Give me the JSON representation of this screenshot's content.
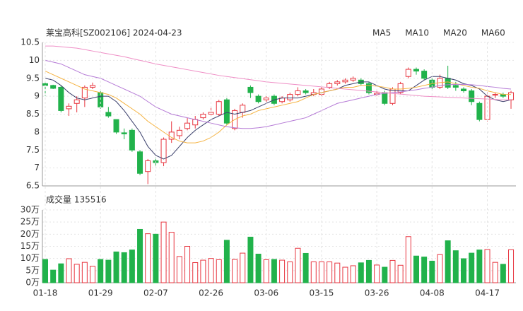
{
  "chart_data": [
    {
      "type": "candlestick",
      "title": "莱宝高科[SZ002106] 2024-04-23",
      "up_color": "#e8353f",
      "down_color": "#21b24b",
      "open": [
        9.35,
        9.3,
        9.25,
        8.65,
        8.8,
        8.95,
        9.25,
        9.1,
        8.55,
        8.35,
        7.98,
        8.05,
        7.45,
        6.9,
        7.2,
        7.15,
        7.8,
        7.9,
        8.1,
        8.2,
        8.4,
        8.5,
        8.5,
        8.9,
        8.1,
        8.55,
        9.25,
        9.0,
        8.9,
        9.0,
        8.85,
        8.9,
        9.05,
        9.15,
        9.05,
        9.05,
        9.25,
        9.35,
        9.4,
        9.45,
        9.45,
        9.35,
        9.05,
        9.1,
        8.8,
        9.1,
        9.55,
        9.75,
        9.7,
        9.45,
        9.25,
        9.5,
        9.3,
        9.2,
        9.15,
        8.8,
        8.35,
        9.05,
        9.05,
        8.9
      ],
      "high": [
        9.4,
        9.32,
        9.3,
        8.8,
        9.0,
        9.3,
        9.38,
        9.15,
        8.7,
        8.35,
        8.1,
        8.1,
        7.5,
        7.25,
        7.3,
        7.85,
        8.3,
        8.15,
        8.4,
        8.45,
        8.55,
        8.7,
        8.9,
        8.95,
        8.65,
        8.8,
        9.3,
        9.05,
        9.0,
        9.05,
        9.0,
        9.1,
        9.25,
        9.2,
        9.2,
        9.25,
        9.4,
        9.45,
        9.5,
        9.55,
        9.5,
        9.4,
        9.15,
        9.15,
        9.25,
        9.4,
        9.8,
        9.8,
        9.75,
        9.5,
        9.6,
        9.85,
        9.4,
        9.25,
        9.2,
        8.85,
        9.1,
        9.1,
        9.1,
        9.15
      ],
      "low": [
        9.0,
        9.2,
        8.55,
        8.45,
        8.55,
        8.7,
        9.2,
        8.65,
        8.4,
        7.95,
        7.8,
        7.45,
        6.8,
        6.55,
        7.05,
        7.05,
        7.7,
        7.8,
        8.05,
        8.1,
        8.35,
        8.45,
        8.45,
        8.2,
        8.05,
        8.4,
        8.95,
        8.8,
        8.8,
        8.75,
        8.8,
        8.85,
        9.0,
        9.05,
        9.0,
        9.0,
        9.2,
        9.3,
        9.35,
        9.4,
        9.3,
        9.05,
        9.0,
        8.75,
        8.75,
        9.05,
        9.5,
        9.6,
        9.45,
        9.2,
        9.2,
        9.2,
        9.15,
        9.1,
        8.75,
        8.3,
        8.3,
        8.95,
        8.95,
        8.65
      ],
      "close": [
        9.3,
        9.22,
        8.6,
        8.72,
        8.9,
        9.25,
        9.3,
        8.7,
        8.45,
        8.0,
        7.95,
        7.5,
        6.85,
        7.2,
        7.15,
        7.8,
        8.0,
        8.05,
        8.25,
        8.35,
        8.5,
        8.55,
        8.85,
        8.25,
        8.6,
        8.75,
        9.1,
        8.85,
        8.95,
        8.8,
        8.95,
        9.05,
        9.15,
        9.1,
        9.1,
        9.2,
        9.35,
        9.4,
        9.45,
        9.5,
        9.35,
        9.1,
        9.08,
        8.8,
        9.2,
        9.35,
        9.75,
        9.7,
        9.5,
        9.25,
        9.5,
        9.25,
        9.25,
        9.15,
        8.85,
        8.35,
        9.0,
        9.05,
        9.0,
        9.1
      ],
      "series": [
        {
          "name": "MA5",
          "color": "#3a3f6b",
          "values": [
            9.5,
            9.45,
            9.3,
            9.1,
            8.95,
            8.9,
            8.95,
            9.0,
            9.0,
            8.85,
            8.6,
            8.3,
            8.0,
            7.6,
            7.35,
            7.25,
            7.35,
            7.6,
            7.85,
            8.05,
            8.2,
            8.35,
            8.45,
            8.55,
            8.5,
            8.55,
            8.6,
            8.7,
            8.8,
            8.9,
            8.95,
            8.95,
            8.95,
            9.0,
            9.05,
            9.1,
            9.15,
            9.2,
            9.3,
            9.35,
            9.4,
            9.4,
            9.3,
            9.2,
            9.15,
            9.15,
            9.15,
            9.3,
            9.45,
            9.55,
            9.55,
            9.5,
            9.45,
            9.35,
            9.3,
            9.2,
            9.0,
            8.9,
            8.85,
            8.9
          ]
        },
        {
          "name": "MA10",
          "color": "#f5b342",
          "values": [
            9.7,
            9.6,
            9.5,
            9.4,
            9.3,
            9.2,
            9.15,
            9.1,
            9.05,
            8.95,
            8.8,
            8.65,
            8.5,
            8.3,
            8.15,
            8.0,
            7.85,
            7.75,
            7.7,
            7.7,
            7.75,
            7.85,
            8.0,
            8.2,
            8.35,
            8.45,
            8.5,
            8.6,
            8.65,
            8.7,
            8.75,
            8.8,
            8.85,
            8.95,
            9.05,
            9.1,
            9.15,
            9.2,
            9.25,
            9.25,
            9.3,
            9.3,
            9.28,
            9.25,
            9.2,
            9.2,
            9.22,
            9.25,
            9.3,
            9.35,
            9.38,
            9.4,
            9.35,
            9.3,
            9.25,
            9.22,
            9.15,
            9.1,
            9.05,
            9.05
          ]
        },
        {
          "name": "MA20",
          "color": "#b57ad6",
          "values": [
            10.0,
            9.95,
            9.9,
            9.8,
            9.7,
            9.6,
            9.55,
            9.5,
            9.4,
            9.3,
            9.2,
            9.1,
            9.0,
            8.85,
            8.7,
            8.6,
            8.5,
            8.45,
            8.4,
            8.35,
            8.3,
            8.25,
            8.2,
            8.15,
            8.12,
            8.1,
            8.1,
            8.12,
            8.15,
            8.2,
            8.25,
            8.3,
            8.35,
            8.4,
            8.5,
            8.6,
            8.7,
            8.8,
            8.85,
            8.9,
            8.95,
            9.0,
            9.05,
            9.08,
            9.1,
            9.12,
            9.15,
            9.18,
            9.22,
            9.25,
            9.3,
            9.32,
            9.33,
            9.33,
            9.32,
            9.3,
            9.27,
            9.25,
            9.22,
            9.2
          ]
        },
        {
          "name": "MA60",
          "color": "#ef8fc6",
          "values": [
            10.4,
            10.4,
            10.38,
            10.36,
            10.34,
            10.3,
            10.26,
            10.22,
            10.18,
            10.14,
            10.1,
            10.05,
            10.0,
            9.95,
            9.9,
            9.86,
            9.82,
            9.78,
            9.74,
            9.7,
            9.66,
            9.62,
            9.58,
            9.55,
            9.52,
            9.49,
            9.46,
            9.43,
            9.4,
            9.38,
            9.36,
            9.34,
            9.32,
            9.3,
            9.28,
            9.26,
            9.24,
            9.22,
            9.2,
            9.18,
            9.16,
            9.14,
            9.12,
            9.1,
            9.08,
            9.06,
            9.04,
            9.02,
            9.0,
            8.99,
            8.98,
            8.97,
            8.96,
            8.95,
            8.94,
            8.93,
            8.92,
            8.91,
            8.9,
            8.9
          ]
        }
      ],
      "ylim": [
        6.5,
        10.5
      ],
      "yticks": [
        6.5,
        7,
        7.5,
        8,
        8.5,
        9,
        9.5,
        10,
        10.5
      ],
      "grid": true
    },
    {
      "type": "bar",
      "title": "成交量 135516",
      "categories": [
        "01-18",
        null,
        null,
        null,
        null,
        null,
        null,
        "01-29",
        null,
        null,
        null,
        null,
        null,
        null,
        "02-07",
        null,
        null,
        null,
        null,
        null,
        null,
        "02-26",
        null,
        null,
        null,
        null,
        null,
        null,
        "03-06",
        null,
        null,
        null,
        null,
        null,
        null,
        "03-15",
        null,
        null,
        null,
        null,
        null,
        null,
        "03-26",
        null,
        null,
        null,
        null,
        null,
        null,
        "04-08",
        null,
        null,
        null,
        null,
        null,
        null,
        "04-17",
        null,
        null,
        null
      ],
      "values": [
        9.6,
        5.2,
        7.8,
        9.9,
        7.6,
        8.4,
        6.8,
        9.6,
        9.3,
        12.7,
        12.4,
        13.5,
        22.0,
        20.2,
        20.0,
        25.0,
        20.8,
        10.8,
        15.0,
        8.3,
        9.3,
        10.0,
        9.5,
        17.5,
        9.6,
        12.2,
        18.8,
        11.8,
        9.5,
        9.6,
        9.3,
        8.6,
        14.2,
        12.1,
        8.6,
        8.6,
        8.6,
        8.1,
        6.4,
        7.0,
        8.2,
        9.2,
        7.3,
        6.4,
        9.2,
        7.2,
        19.0,
        11.0,
        10.6,
        8.9,
        11.6,
        17.3,
        13.2,
        9.9,
        12.2,
        13.5,
        13.7,
        8.4,
        7.6,
        13.6
      ],
      "ylim": [
        0,
        30
      ],
      "yticks": [
        {
          "value": 0,
          "label": "0万"
        },
        {
          "value": 5,
          "label": "5万"
        },
        {
          "value": 10,
          "label": "10万"
        },
        {
          "value": 15,
          "label": "15万"
        },
        {
          "value": 20,
          "label": "20万"
        },
        {
          "value": 25,
          "label": "25万"
        },
        {
          "value": 30,
          "label": "30万"
        }
      ],
      "grid": true
    }
  ]
}
